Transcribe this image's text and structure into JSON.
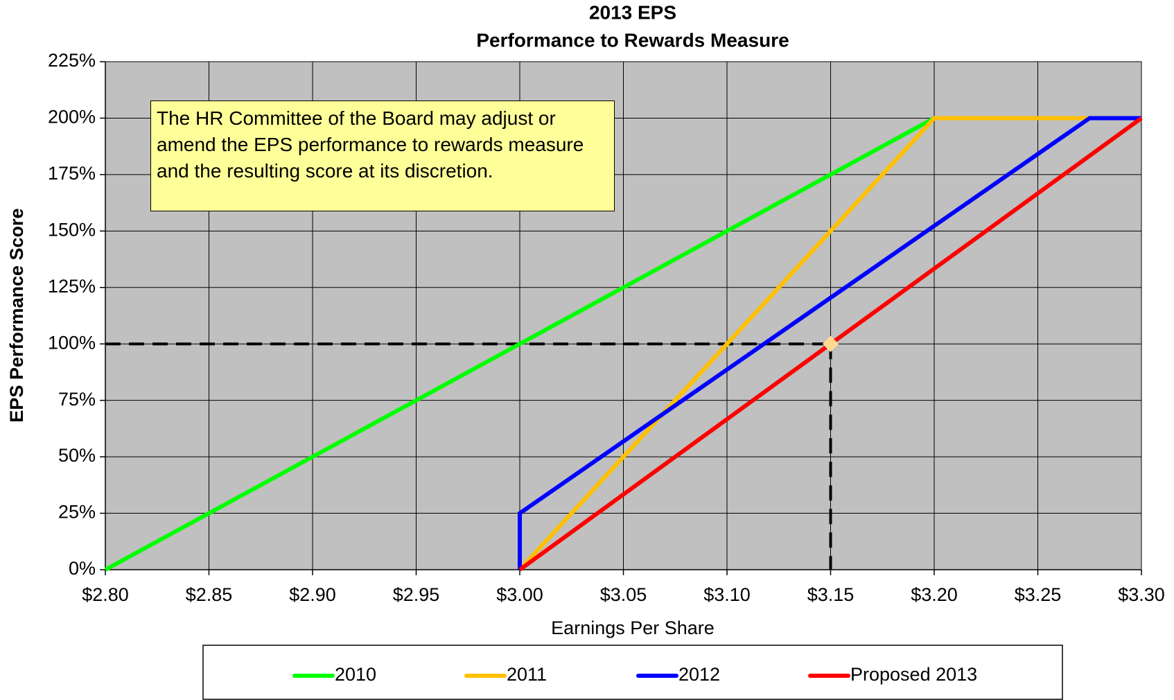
{
  "chart_data": {
    "type": "line",
    "title": "2013 EPS",
    "subtitle": "Performance to Rewards Measure",
    "xlabel": "Earnings Per Share",
    "ylabel": "EPS Performance Score",
    "annotation": "The HR Committee of the Board may adjust or amend the EPS performance to rewards measure and the resulting score at its discretion.",
    "xlim": [
      2.8,
      3.3
    ],
    "ylim": [
      0,
      225
    ],
    "xticks": [
      {
        "value": 2.8,
        "label": "$2.80"
      },
      {
        "value": 2.85,
        "label": "$2.85"
      },
      {
        "value": 2.9,
        "label": "$2.90"
      },
      {
        "value": 2.95,
        "label": "$2.95"
      },
      {
        "value": 3.0,
        "label": "$3.00"
      },
      {
        "value": 3.05,
        "label": "$3.05"
      },
      {
        "value": 3.1,
        "label": "$3.10"
      },
      {
        "value": 3.15,
        "label": "$3.15"
      },
      {
        "value": 3.2,
        "label": "$3.20"
      },
      {
        "value": 3.25,
        "label": "$3.25"
      },
      {
        "value": 3.3,
        "label": "$3.30"
      }
    ],
    "yticks": [
      {
        "value": 0,
        "label": "0%"
      },
      {
        "value": 25,
        "label": "25%"
      },
      {
        "value": 50,
        "label": "50%"
      },
      {
        "value": 75,
        "label": "75%"
      },
      {
        "value": 100,
        "label": "100%"
      },
      {
        "value": 125,
        "label": "125%"
      },
      {
        "value": 150,
        "label": "150%"
      },
      {
        "value": 175,
        "label": "175%"
      },
      {
        "value": 200,
        "label": "200%"
      },
      {
        "value": 225,
        "label": "225%"
      }
    ],
    "grid": true,
    "legend": "bottom",
    "series": [
      {
        "name": "2010",
        "color": "#00ff00",
        "x": [
          2.8,
          3.2
        ],
        "values": [
          0,
          200
        ]
      },
      {
        "name": "2011",
        "color": "#ffc000",
        "x": [
          3.0,
          3.2,
          3.275
        ],
        "values": [
          0,
          200,
          200
        ]
      },
      {
        "name": "2012",
        "color": "#0000ff",
        "x": [
          3.0,
          3.0,
          3.275,
          3.3
        ],
        "values": [
          0,
          25,
          200,
          200
        ]
      },
      {
        "name": "Proposed 2013",
        "color": "#ff0000",
        "x": [
          3.0,
          3.3
        ],
        "values": [
          0,
          200
        ]
      }
    ],
    "target": {
      "x": 3.15,
      "y": 100,
      "color": "#ffd990"
    }
  }
}
